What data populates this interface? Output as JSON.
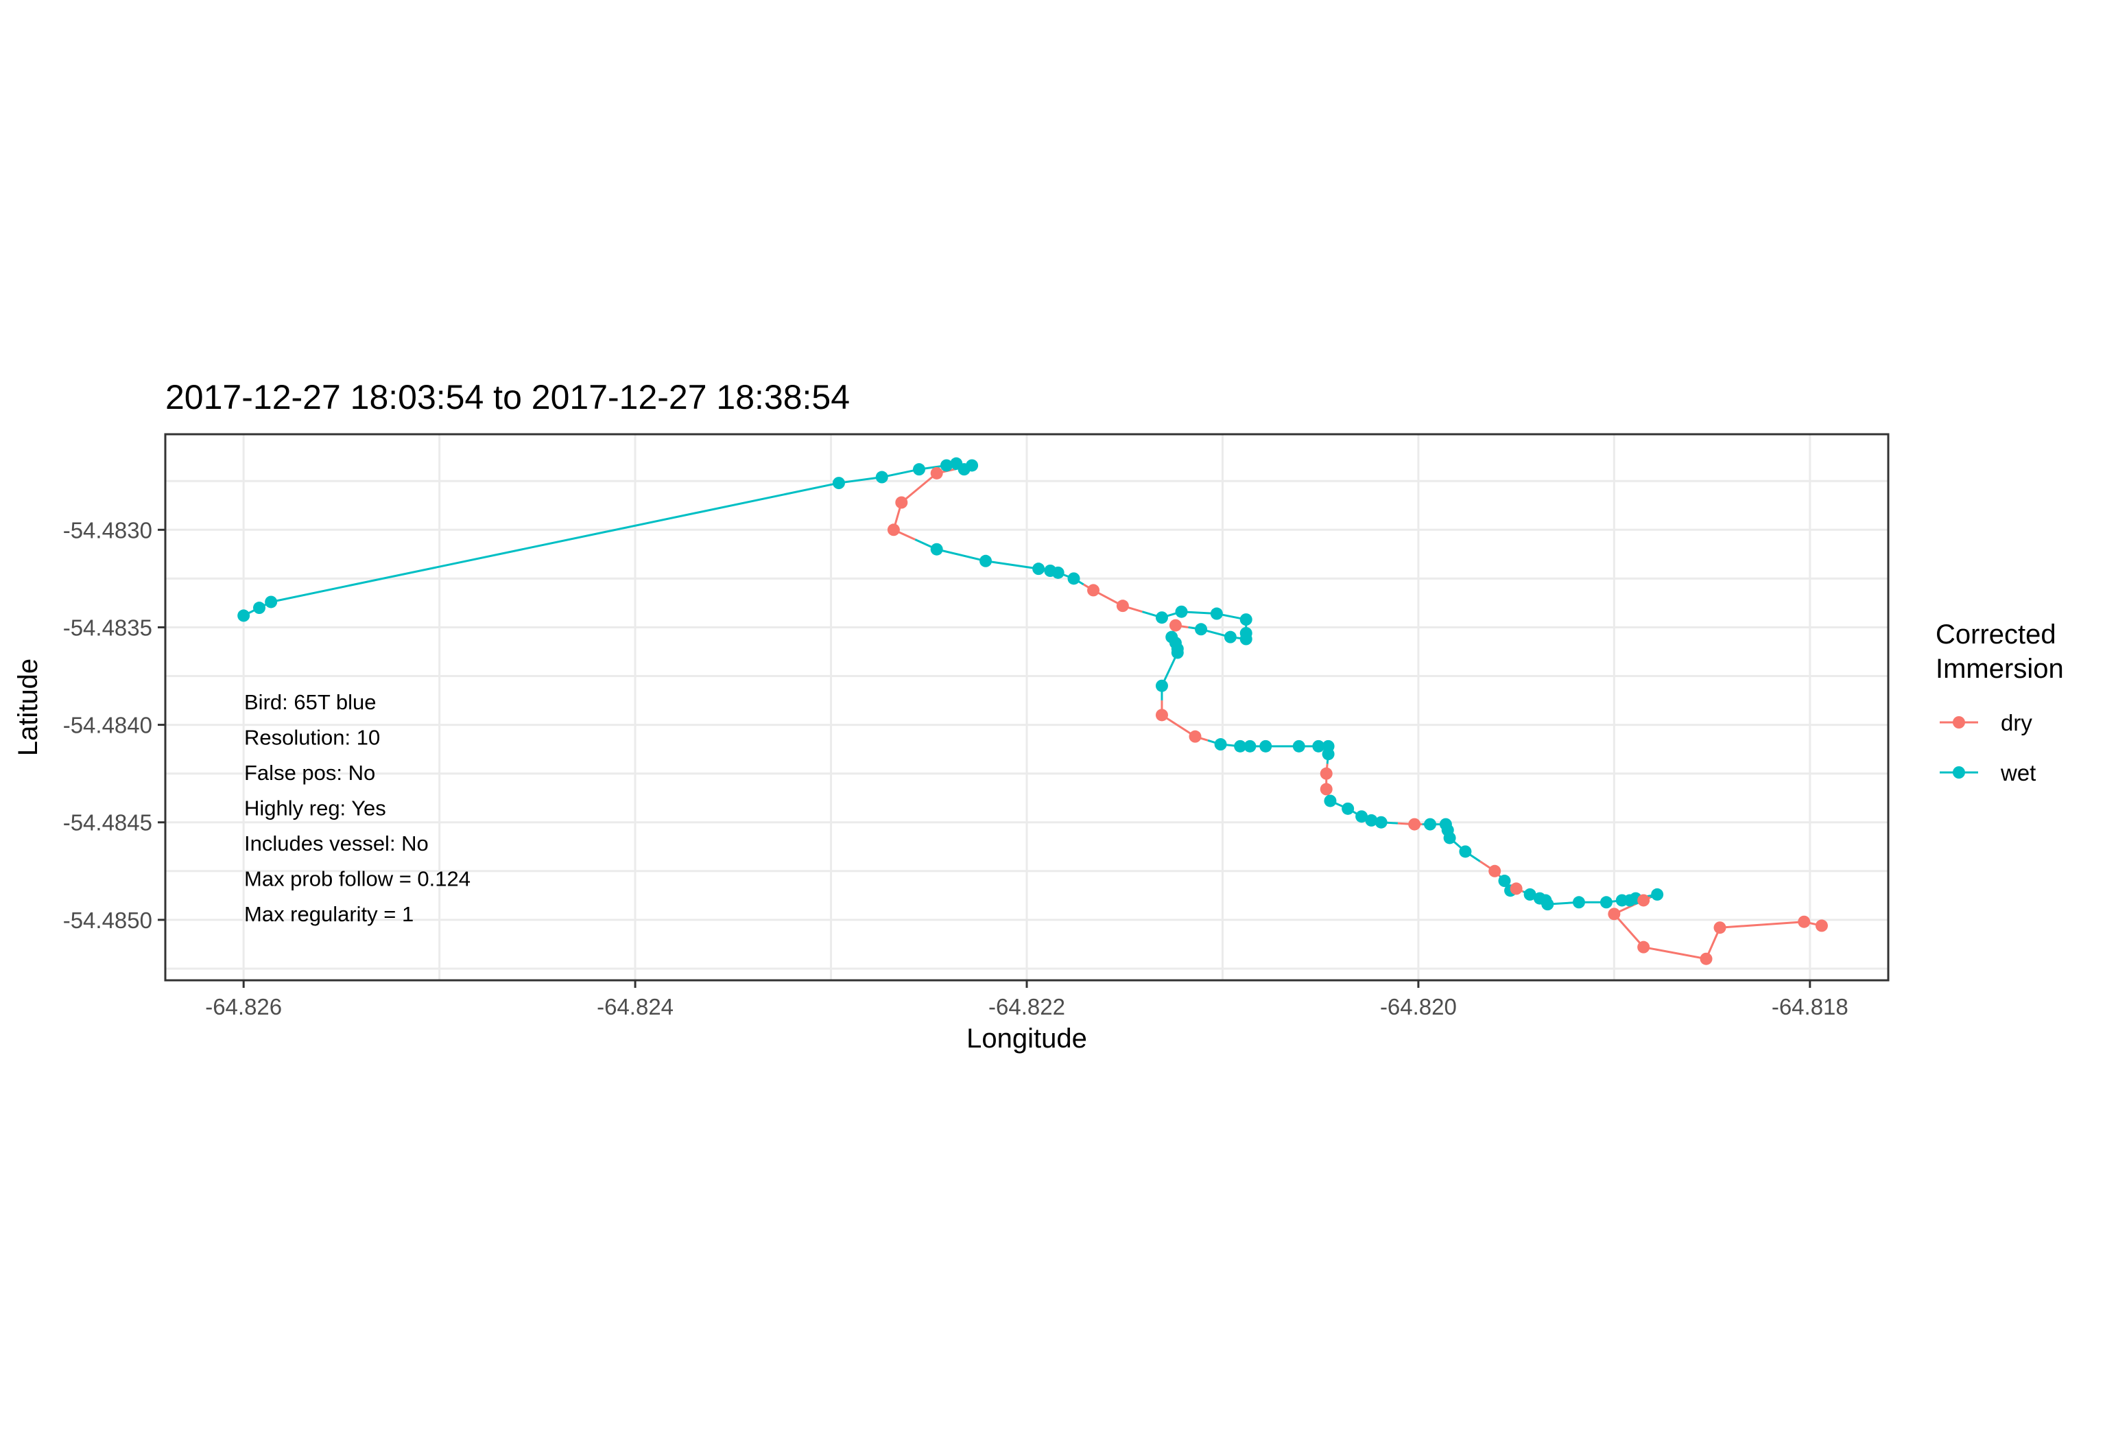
{
  "chart_data": {
    "type": "scatter",
    "title": "2017-12-27 18:03:54 to 2017-12-27 18:38:54",
    "xlabel": "Longitude",
    "ylabel": "Latitude",
    "xlim": [
      -64.8264,
      -64.8176
    ],
    "ylim": [
      -54.48531,
      -54.48251
    ],
    "x_ticks": [
      -64.826,
      -64.824,
      -64.822,
      -64.82,
      -64.818
    ],
    "x_tick_labels": [
      "-64.826",
      "-64.824",
      "-64.822",
      "-64.820",
      "-64.818"
    ],
    "y_ticks": [
      -54.483,
      -54.4835,
      -54.484,
      -54.4845,
      -54.485
    ],
    "y_tick_labels": [
      "-54.4830",
      "-54.4835",
      "-54.4840",
      "-54.4845",
      "-54.4850"
    ],
    "grid": true,
    "legend": {
      "title_lines": [
        "Corrected",
        "Immersion"
      ],
      "placement": "right",
      "entries": [
        {
          "label": "dry",
          "color": "#F8766D"
        },
        {
          "label": "wet",
          "color": "#00BFC4"
        }
      ]
    },
    "annotations": [
      "Bird: 65T blue",
      "Resolution: 10",
      "False pos: No",
      "Highly reg: Yes",
      "Includes vessel: No",
      "Max prob follow = 0.124",
      "Max regularity = 1"
    ],
    "points": [
      {
        "x": -64.826,
        "y": -54.48344,
        "c": "wet"
      },
      {
        "x": -64.82592,
        "y": -54.4834,
        "c": "wet"
      },
      {
        "x": -64.82586,
        "y": -54.48337,
        "c": "wet"
      },
      {
        "x": -64.82296,
        "y": -54.48276,
        "c": "wet"
      },
      {
        "x": -64.82274,
        "y": -54.48273,
        "c": "wet"
      },
      {
        "x": -64.82255,
        "y": -54.48269,
        "c": "wet"
      },
      {
        "x": -64.82241,
        "y": -54.48267,
        "c": "wet"
      },
      {
        "x": -64.82236,
        "y": -54.48266,
        "c": "wet"
      },
      {
        "x": -64.82232,
        "y": -54.48269,
        "c": "wet"
      },
      {
        "x": -64.82228,
        "y": -54.48267,
        "c": "wet"
      },
      {
        "x": -64.82246,
        "y": -54.48271,
        "c": "dry"
      },
      {
        "x": -64.82264,
        "y": -54.48286,
        "c": "dry"
      },
      {
        "x": -64.82268,
        "y": -54.483,
        "c": "dry"
      },
      {
        "x": -64.82246,
        "y": -54.4831,
        "c": "wet"
      },
      {
        "x": -64.82221,
        "y": -54.48316,
        "c": "wet"
      },
      {
        "x": -64.82194,
        "y": -54.4832,
        "c": "wet"
      },
      {
        "x": -64.82188,
        "y": -54.48321,
        "c": "wet"
      },
      {
        "x": -64.82184,
        "y": -54.48322,
        "c": "wet"
      },
      {
        "x": -64.82176,
        "y": -54.48325,
        "c": "wet"
      },
      {
        "x": -64.82166,
        "y": -54.48331,
        "c": "dry"
      },
      {
        "x": -64.82151,
        "y": -54.48339,
        "c": "dry"
      },
      {
        "x": -64.82131,
        "y": -54.48345,
        "c": "wet"
      },
      {
        "x": -64.82121,
        "y": -54.48342,
        "c": "wet"
      },
      {
        "x": -64.82103,
        "y": -54.48343,
        "c": "wet"
      },
      {
        "x": -64.82088,
        "y": -54.48346,
        "c": "wet"
      },
      {
        "x": -64.82088,
        "y": -54.48353,
        "c": "wet"
      },
      {
        "x": -64.82088,
        "y": -54.48356,
        "c": "wet"
      },
      {
        "x": -64.82096,
        "y": -54.48355,
        "c": "wet"
      },
      {
        "x": -64.82111,
        "y": -54.48351,
        "c": "wet"
      },
      {
        "x": -64.82124,
        "y": -54.48349,
        "c": "dry"
      },
      {
        "x": -64.82126,
        "y": -54.48355,
        "c": "wet"
      },
      {
        "x": -64.82124,
        "y": -54.48358,
        "c": "wet"
      },
      {
        "x": -64.82123,
        "y": -54.48361,
        "c": "wet"
      },
      {
        "x": -64.82123,
        "y": -54.48363,
        "c": "wet"
      },
      {
        "x": -64.82131,
        "y": -54.4838,
        "c": "wet"
      },
      {
        "x": -64.82131,
        "y": -54.48395,
        "c": "dry"
      },
      {
        "x": -64.82114,
        "y": -54.48406,
        "c": "dry"
      },
      {
        "x": -64.82101,
        "y": -54.4841,
        "c": "wet"
      },
      {
        "x": -64.82091,
        "y": -54.48411,
        "c": "wet"
      },
      {
        "x": -64.82086,
        "y": -54.48411,
        "c": "wet"
      },
      {
        "x": -64.82078,
        "y": -54.48411,
        "c": "wet"
      },
      {
        "x": -64.82061,
        "y": -54.48411,
        "c": "wet"
      },
      {
        "x": -64.82051,
        "y": -54.48411,
        "c": "wet"
      },
      {
        "x": -64.82046,
        "y": -54.48411,
        "c": "wet"
      },
      {
        "x": -64.82046,
        "y": -54.48415,
        "c": "wet"
      },
      {
        "x": -64.82047,
        "y": -54.48425,
        "c": "dry"
      },
      {
        "x": -64.82047,
        "y": -54.48433,
        "c": "dry"
      },
      {
        "x": -64.82045,
        "y": -54.48439,
        "c": "wet"
      },
      {
        "x": -64.82036,
        "y": -54.48443,
        "c": "wet"
      },
      {
        "x": -64.82029,
        "y": -54.48447,
        "c": "wet"
      },
      {
        "x": -64.82024,
        "y": -54.48449,
        "c": "wet"
      },
      {
        "x": -64.82019,
        "y": -54.4845,
        "c": "wet"
      },
      {
        "x": -64.82002,
        "y": -54.48451,
        "c": "dry"
      },
      {
        "x": -64.81994,
        "y": -54.48451,
        "c": "wet"
      },
      {
        "x": -64.81986,
        "y": -54.48451,
        "c": "wet"
      },
      {
        "x": -64.81985,
        "y": -54.48454,
        "c": "wet"
      },
      {
        "x": -64.81984,
        "y": -54.48458,
        "c": "wet"
      },
      {
        "x": -64.81976,
        "y": -54.48465,
        "c": "wet"
      },
      {
        "x": -64.81961,
        "y": -54.48475,
        "c": "dry"
      },
      {
        "x": -64.81956,
        "y": -54.4848,
        "c": "wet"
      },
      {
        "x": -64.81953,
        "y": -54.48485,
        "c": "wet"
      },
      {
        "x": -64.8195,
        "y": -54.48484,
        "c": "dry"
      },
      {
        "x": -64.81943,
        "y": -54.48487,
        "c": "wet"
      },
      {
        "x": -64.81938,
        "y": -54.48489,
        "c": "wet"
      },
      {
        "x": -64.81935,
        "y": -54.4849,
        "c": "wet"
      },
      {
        "x": -64.81934,
        "y": -54.48492,
        "c": "wet"
      },
      {
        "x": -64.81918,
        "y": -54.48491,
        "c": "wet"
      },
      {
        "x": -64.81904,
        "y": -54.48491,
        "c": "wet"
      },
      {
        "x": -64.81896,
        "y": -54.4849,
        "c": "wet"
      },
      {
        "x": -64.81892,
        "y": -54.4849,
        "c": "wet"
      },
      {
        "x": -64.81889,
        "y": -54.48489,
        "c": "wet"
      },
      {
        "x": -64.81878,
        "y": -54.48487,
        "c": "wet"
      },
      {
        "x": -64.81885,
        "y": -54.4849,
        "c": "dry"
      },
      {
        "x": -64.819,
        "y": -54.48497,
        "c": "dry"
      },
      {
        "x": -64.81885,
        "y": -54.48514,
        "c": "dry"
      },
      {
        "x": -64.81853,
        "y": -54.4852,
        "c": "dry"
      },
      {
        "x": -64.81846,
        "y": -54.48504,
        "c": "dry"
      },
      {
        "x": -64.81803,
        "y": -54.48501,
        "c": "dry"
      },
      {
        "x": -64.81794,
        "y": -54.48503,
        "c": "dry"
      }
    ]
  }
}
